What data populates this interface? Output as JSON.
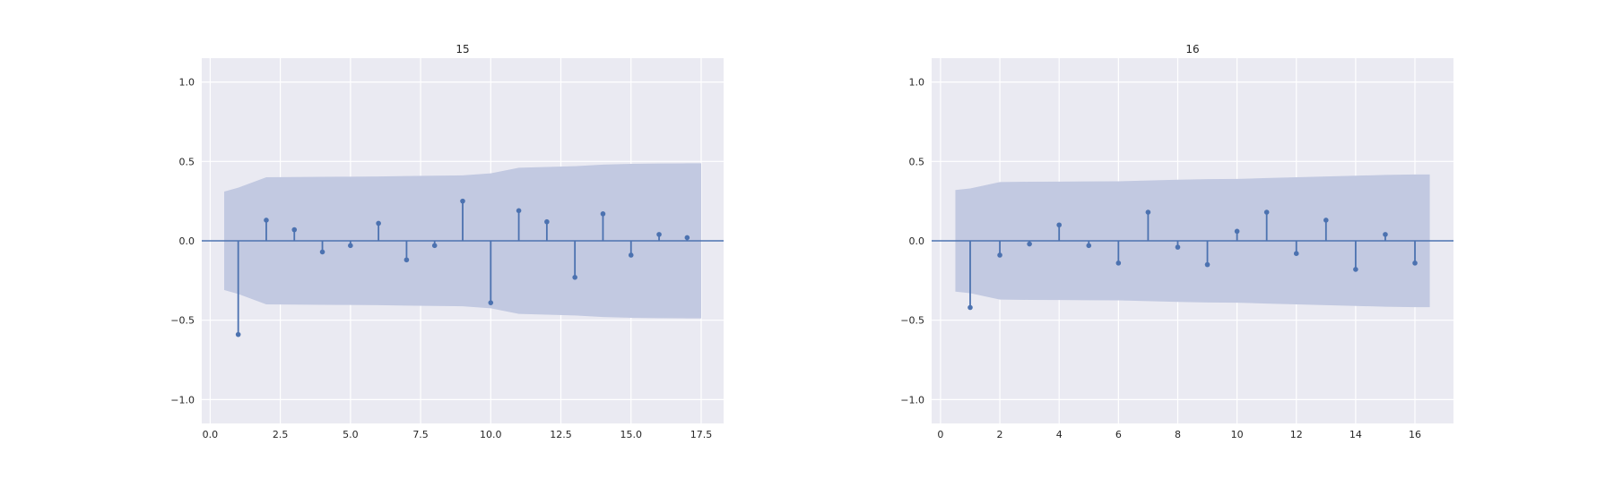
{
  "chart_data": [
    {
      "type": "stem",
      "title": "15",
      "xlabel": "",
      "ylabel": "",
      "xlim": [
        -0.3,
        18.3
      ],
      "ylim": [
        -1.15,
        1.15
      ],
      "xticks": [
        0.0,
        2.5,
        5.0,
        7.5,
        10.0,
        12.5,
        15.0,
        17.5
      ],
      "xtick_labels": [
        "0.0",
        "2.5",
        "5.0",
        "7.5",
        "10.0",
        "12.5",
        "15.0",
        "17.5"
      ],
      "yticks": [
        -1.0,
        -0.5,
        0.0,
        0.5,
        1.0
      ],
      "ytick_labels": [
        "−1.0",
        "−0.5",
        "0.0",
        "0.5",
        "1.0"
      ],
      "grid": true,
      "lags": [
        1,
        2,
        3,
        4,
        5,
        6,
        7,
        8,
        9,
        10,
        11,
        12,
        13,
        14,
        15,
        16,
        17
      ],
      "values": [
        -0.59,
        0.13,
        0.07,
        -0.07,
        -0.03,
        0.11,
        -0.12,
        -0.03,
        0.25,
        -0.39,
        0.19,
        0.12,
        -0.23,
        0.17,
        -0.09,
        0.04,
        0.02
      ],
      "confidence_band": {
        "lags": [
          0.5,
          1,
          2,
          3,
          4,
          5,
          6,
          7,
          8,
          9,
          10,
          11,
          12,
          13,
          14,
          15,
          16,
          17,
          17.5
        ],
        "upper": [
          0.31,
          0.335,
          0.4,
          0.402,
          0.403,
          0.404,
          0.405,
          0.408,
          0.41,
          0.412,
          0.425,
          0.46,
          0.465,
          0.47,
          0.48,
          0.485,
          0.487,
          0.488,
          0.488
        ]
      }
    },
    {
      "type": "stem",
      "title": "16",
      "xlabel": "",
      "ylabel": "",
      "xlim": [
        -0.3,
        17.3
      ],
      "ylim": [
        -1.15,
        1.15
      ],
      "xticks": [
        0,
        2,
        4,
        6,
        8,
        10,
        12,
        14,
        16
      ],
      "xtick_labels": [
        "0",
        "2",
        "4",
        "6",
        "8",
        "10",
        "12",
        "14",
        "16"
      ],
      "yticks": [
        -1.0,
        -0.5,
        0.0,
        0.5,
        1.0
      ],
      "ytick_labels": [
        "−1.0",
        "−0.5",
        "0.0",
        "0.5",
        "1.0"
      ],
      "grid": true,
      "lags": [
        1,
        2,
        3,
        4,
        5,
        6,
        7,
        8,
        9,
        10,
        11,
        12,
        13,
        14,
        15,
        16
      ],
      "values": [
        -0.42,
        -0.09,
        -0.02,
        0.1,
        -0.03,
        -0.14,
        0.18,
        -0.04,
        -0.15,
        0.06,
        0.18,
        -0.08,
        0.13,
        -0.18,
        0.04,
        -0.14
      ],
      "confidence_band": {
        "lags": [
          0.5,
          1,
          2,
          3,
          4,
          5,
          6,
          7,
          8,
          9,
          10,
          11,
          12,
          13,
          14,
          15,
          16,
          16.5
        ],
        "upper": [
          0.32,
          0.33,
          0.37,
          0.372,
          0.373,
          0.374,
          0.375,
          0.38,
          0.385,
          0.388,
          0.39,
          0.395,
          0.4,
          0.405,
          0.41,
          0.415,
          0.418,
          0.418
        ]
      }
    }
  ],
  "colors": {
    "series": "#4c72b0",
    "band": "#c2c9e1",
    "panel_background": "#eaeaf2",
    "grid": "#ffffff"
  }
}
